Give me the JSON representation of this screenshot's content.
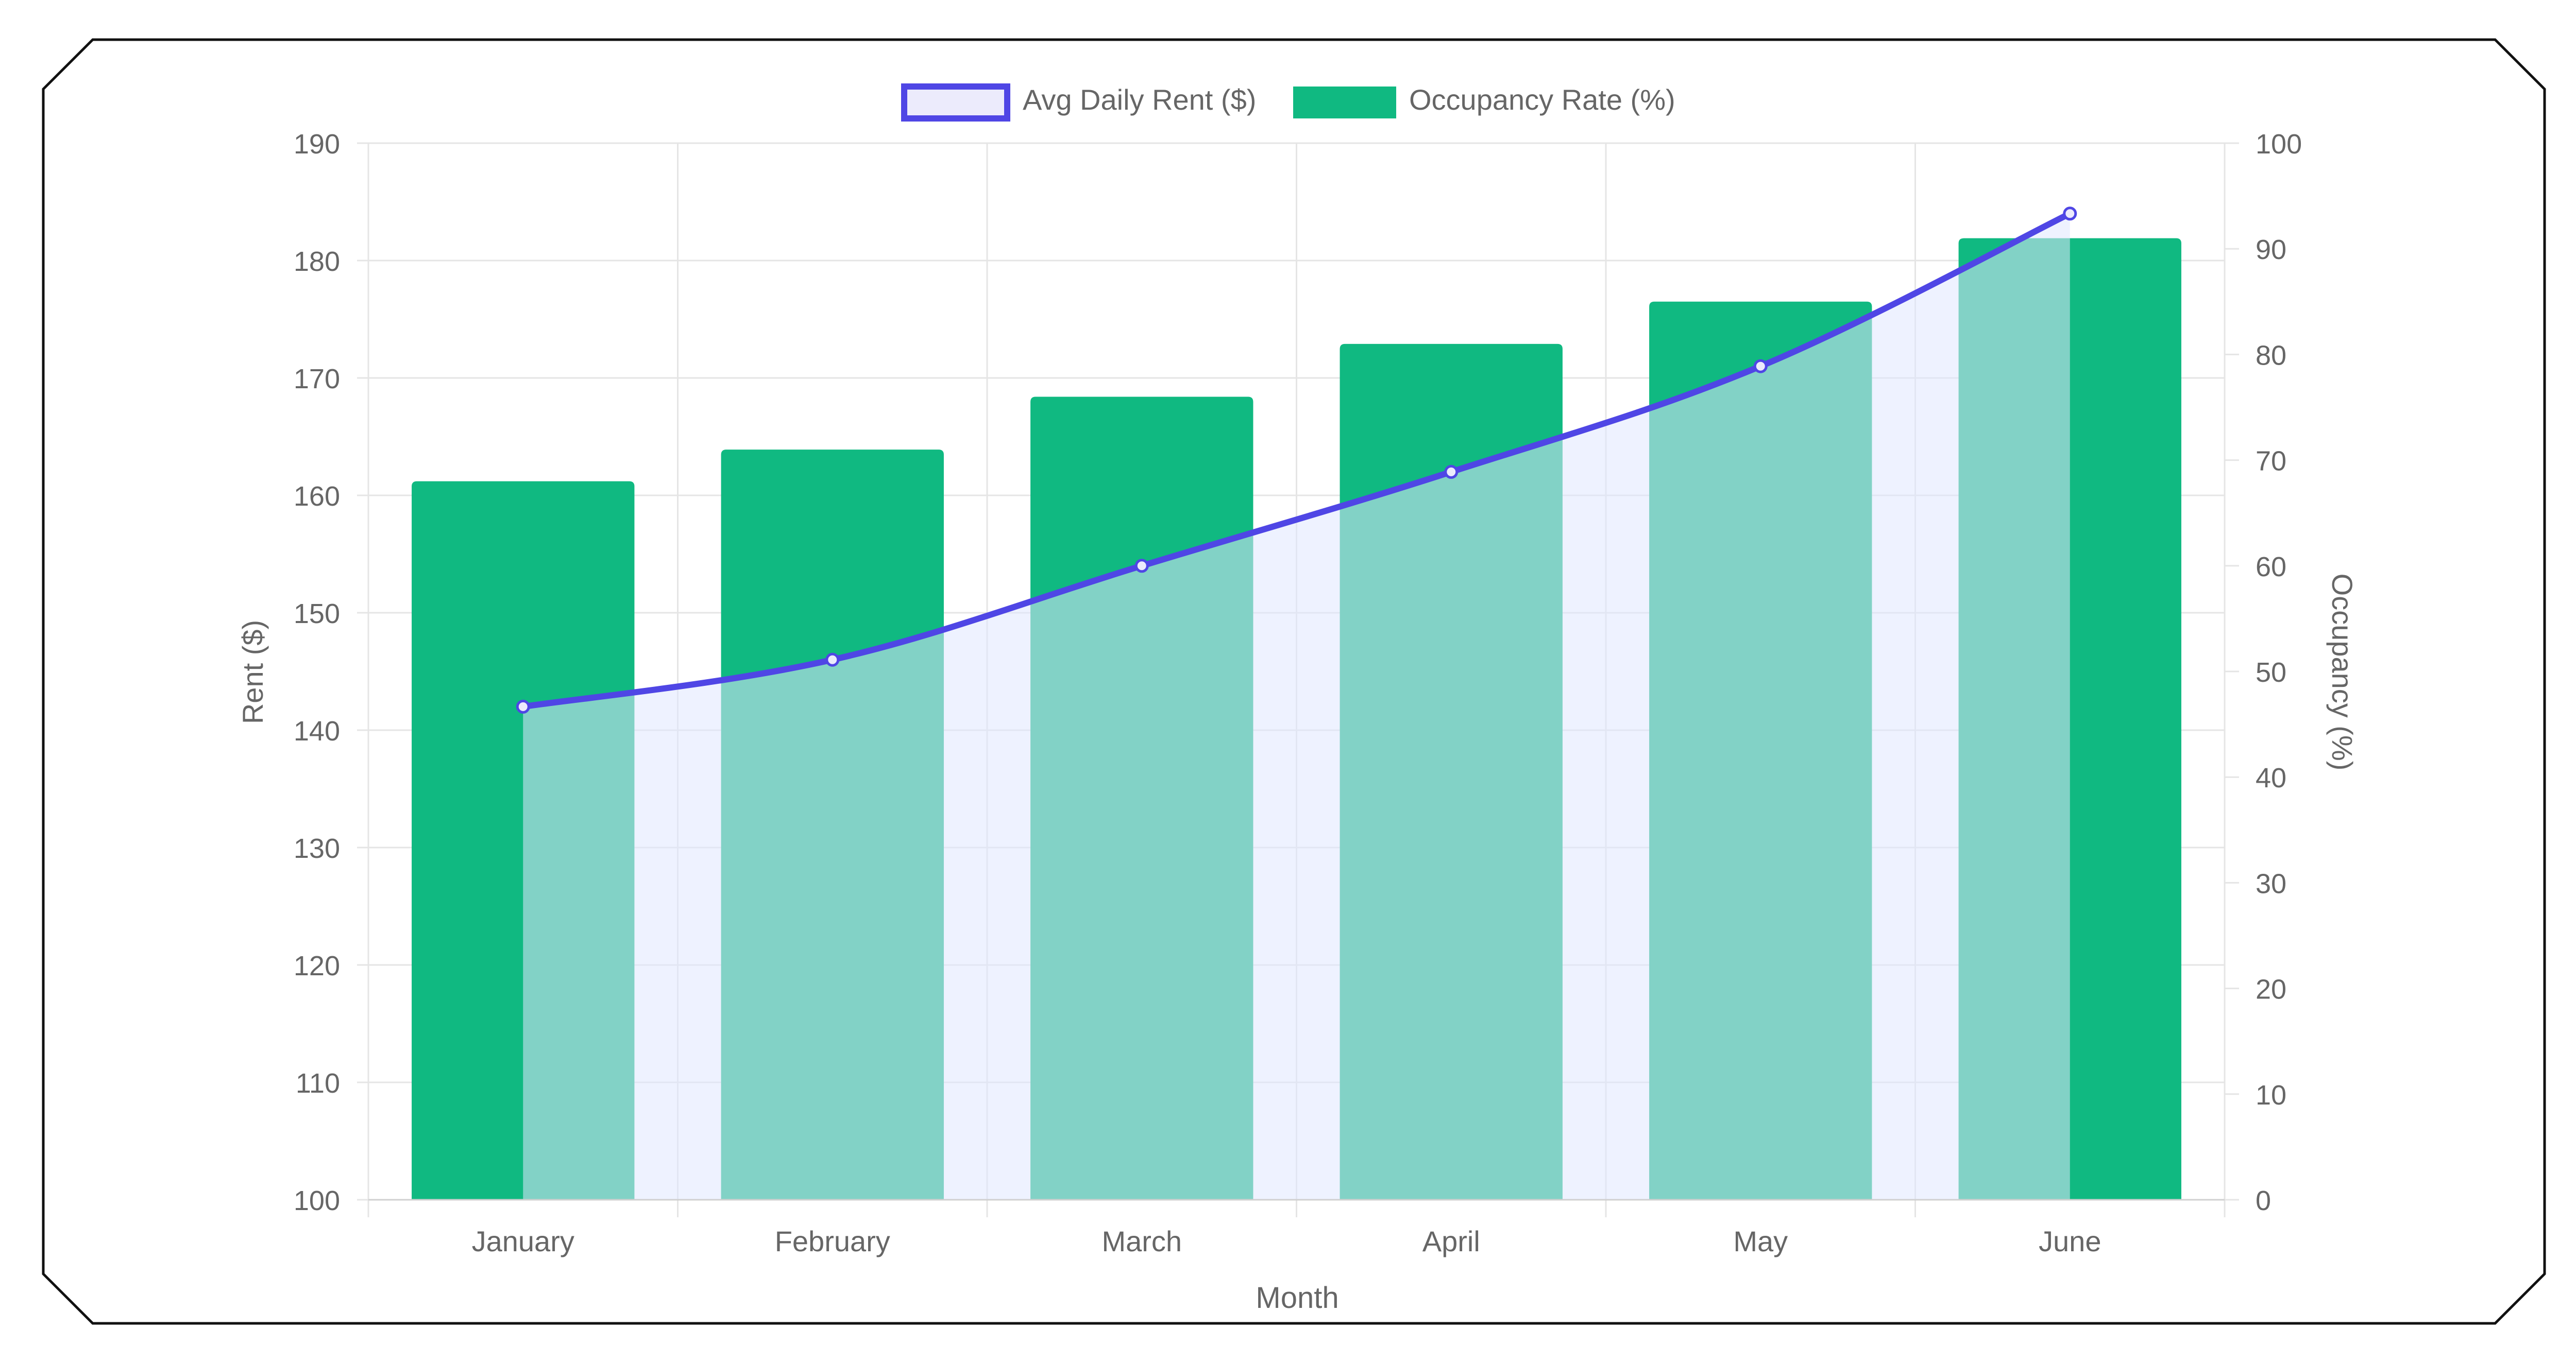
{
  "chart_data": {
    "type": "bar",
    "categories": [
      "January",
      "February",
      "March",
      "April",
      "May",
      "June"
    ],
    "xlabel": "Month",
    "legend": {
      "placement": "top-center",
      "items": [
        "Avg Daily Rent ($)",
        "Occupancy Rate (%)"
      ]
    },
    "grid": true,
    "series": [
      {
        "name": "Avg Daily Rent ($)",
        "type": "line",
        "axis": "left",
        "fill": true,
        "values": [
          142,
          146,
          154,
          162,
          171,
          184
        ]
      },
      {
        "name": "Occupancy Rate (%)",
        "type": "bar",
        "axis": "right",
        "values": [
          68,
          71,
          76,
          81,
          85,
          91
        ]
      }
    ],
    "y_left": {
      "label": "Rent ($)",
      "lim": [
        100,
        190
      ],
      "ticks": [
        100,
        110,
        120,
        130,
        140,
        150,
        160,
        170,
        180,
        190
      ]
    },
    "y_right": {
      "label": "Occupancy (%)",
      "lim": [
        0,
        100
      ],
      "ticks": [
        0,
        10,
        20,
        30,
        40,
        50,
        60,
        70,
        80,
        90,
        100
      ]
    }
  },
  "colors": {
    "line": "#4f46e5",
    "line_fill": "#e0e7ff",
    "bar": "#10b981",
    "grid": "#e5e5e5",
    "text": "#666666",
    "frame": "#111111"
  }
}
